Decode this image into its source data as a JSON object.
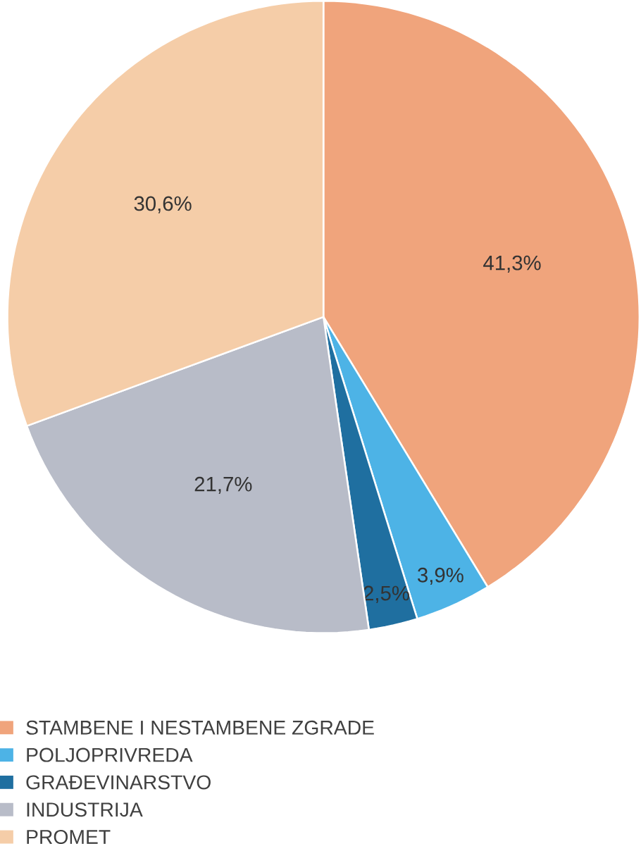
{
  "chart_data": {
    "type": "pie",
    "categories": [
      "STAMBENE I NESTAMBENE ZGRADE",
      "POLJOPRIVREDA",
      "GRAĐEVINARSTVO",
      "INDUSTRIJA",
      "PROMET"
    ],
    "values": [
      41.3,
      3.9,
      2.5,
      21.7,
      30.6
    ],
    "value_labels": [
      "41,3%",
      "3,9%",
      "2,5%",
      "21,7%",
      "30,6%"
    ],
    "colors": [
      "#f0a47c",
      "#4db3e6",
      "#1f6fa0",
      "#b8bcc8",
      "#f5cda8"
    ],
    "legend": "bottom"
  }
}
